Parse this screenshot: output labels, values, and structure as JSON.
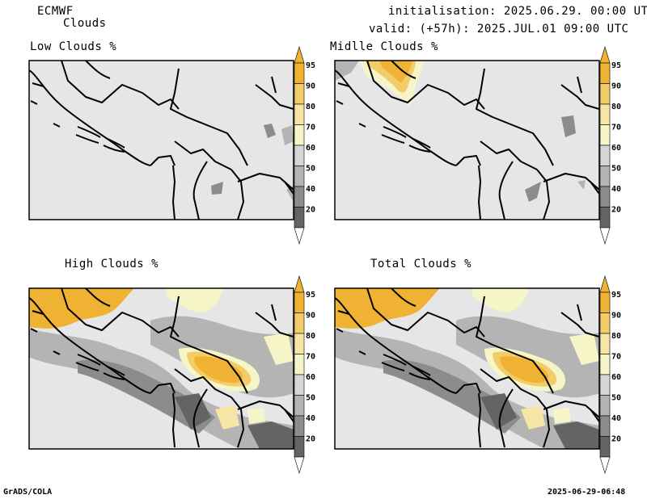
{
  "header": {
    "model": "ECMWF",
    "product": "Clouds",
    "initialisation": "initialisation: 2025.06.29. 00:00 UTC",
    "valid": "valid: (+57h): 2025.JUL.01 09:00 UTC"
  },
  "panels": [
    {
      "title": "Low Clouds %"
    },
    {
      "title": "Midlle Clouds %"
    },
    {
      "title": "High Clouds %"
    },
    {
      "title": "Total Clouds %"
    }
  ],
  "colorbar": {
    "levels": [
      "95",
      "90",
      "80",
      "70",
      "60",
      "50",
      "40",
      "20"
    ],
    "colors": [
      "#f0b232",
      "#f3cc6a",
      "#f7e5a5",
      "#f5f5c8",
      "#d6d6d6",
      "#b4b4b4",
      "#8c8c8c",
      "#646464"
    ]
  },
  "footer": {
    "left": "GrADS/COLA",
    "right": "2025-06-29-06:48"
  },
  "colors": {
    "land": "#e6e6e6",
    "border": "#000000"
  }
}
